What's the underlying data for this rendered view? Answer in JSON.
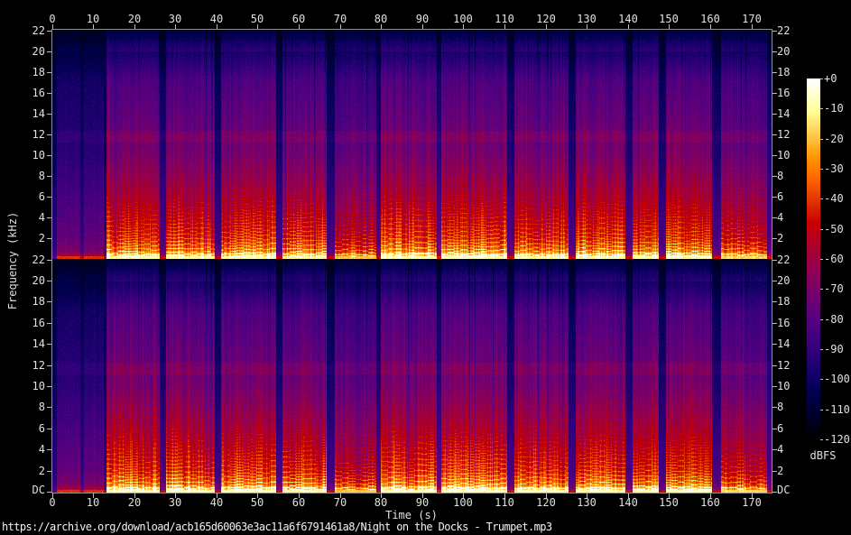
{
  "chart_data": {
    "type": "heatmap",
    "subtype": "audio-spectrogram-stereo",
    "title": "https://archive.org/download/acb165d60063e3ac11a6f6791461a8/Night on the Docks - Trumpet.mp3",
    "xlabel": "Time (s)",
    "ylabel": "Frequency (kHz)",
    "colorbar_label": "dBFS",
    "channels": 2,
    "x_range_s": [
      0,
      174.8
    ],
    "x_ticks": [
      0,
      10,
      20,
      30,
      40,
      50,
      60,
      70,
      80,
      90,
      100,
      110,
      120,
      130,
      140,
      150,
      160,
      170
    ],
    "y_range_khz": [
      0,
      22.05
    ],
    "y_tick_labels": [
      "22",
      "20",
      "18",
      "16",
      "14",
      "12",
      "10",
      "8",
      "6",
      "4",
      "2"
    ],
    "y_bottom_label": "DC",
    "db_range": [
      -120,
      0
    ],
    "colorbar_tick_labels": [
      "+0",
      "-10",
      "-20",
      "-30",
      "-40",
      "-50",
      "-60",
      "-70",
      "-80",
      "-90",
      "-100",
      "-110",
      "-120"
    ],
    "palette": "sox-spectrogram (black-navy-purple-magenta-red-orange-yellow-white)",
    "envelope_segments": [
      [
        0.0,
        1.0,
        0.02
      ],
      [
        1.0,
        6.8,
        0.34
      ],
      [
        6.8,
        7.6,
        0.1
      ],
      [
        7.6,
        12.6,
        0.34
      ],
      [
        12.6,
        13.2,
        0.06
      ],
      [
        13.2,
        26.2,
        1.0
      ],
      [
        26.2,
        27.6,
        0.22
      ],
      [
        27.6,
        39.4,
        1.0
      ],
      [
        39.4,
        41.0,
        0.18
      ],
      [
        41.0,
        54.4,
        1.0
      ],
      [
        54.4,
        56.0,
        0.2
      ],
      [
        56.0,
        66.6,
        0.97
      ],
      [
        66.6,
        68.6,
        0.18
      ],
      [
        68.6,
        78.8,
        0.8
      ],
      [
        78.8,
        79.8,
        0.22
      ],
      [
        79.8,
        84.0,
        1.1
      ],
      [
        84.0,
        93.4,
        1.0
      ],
      [
        93.4,
        94.6,
        0.3
      ],
      [
        94.6,
        110.6,
        1.02
      ],
      [
        110.6,
        112.4,
        0.22
      ],
      [
        112.4,
        125.4,
        1.0
      ],
      [
        125.4,
        127.2,
        0.2
      ],
      [
        127.2,
        139.2,
        1.0
      ],
      [
        139.2,
        141.0,
        0.22
      ],
      [
        141.0,
        147.4,
        1.0
      ],
      [
        147.4,
        149.2,
        0.2
      ],
      [
        149.2,
        160.4,
        1.0
      ],
      [
        160.4,
        162.6,
        0.2
      ],
      [
        162.6,
        173.6,
        0.86
      ],
      [
        173.6,
        174.8,
        0.25
      ]
    ],
    "base_curve_khz_db": [
      [
        0,
        -12
      ],
      [
        0.25,
        -12
      ],
      [
        0.8,
        -34
      ],
      [
        2,
        -46
      ],
      [
        10,
        -71.6
      ],
      [
        17.2,
        -83.1
      ],
      [
        20,
        -98.5
      ],
      [
        22.05,
        -115
      ]
    ],
    "harmonics": {
      "strength_db": 30,
      "decay_khz": 4.2,
      "f0_min_khz": 0.23,
      "f0_spread_khz": 0.3,
      "note_seconds": 1.6,
      "line_width_khz": 0.06
    },
    "mp3_band_khz": [
      11.2,
      12.3
    ],
    "lowpass_cutoff_khz": 20,
    "noise_db": 3.5
  }
}
